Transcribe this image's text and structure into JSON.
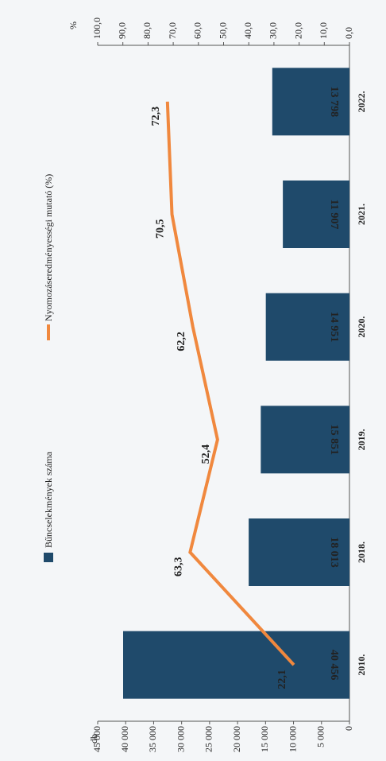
{
  "chart_data": {
    "type": "bar",
    "ylabel": "db",
    "y2label": "%",
    "categories": [
      "2010.",
      "2018.",
      "2019.",
      "2020.",
      "2021.",
      "2022."
    ],
    "series": [
      {
        "name": "Bűncselekmények száma",
        "type": "bar",
        "color": "#1f4a6b",
        "values": [
          40456,
          18013,
          15851,
          14951,
          11907,
          13798
        ],
        "value_labels": [
          "40 456",
          "18 013",
          "15 851",
          "14 951",
          "11 907",
          "13 798"
        ]
      },
      {
        "name": "Nyomozáseredményességi mutató (%)",
        "type": "line",
        "axis": "y2",
        "color": "#f0883e",
        "values": [
          22.1,
          63.3,
          52.4,
          62.2,
          70.5,
          72.3
        ],
        "value_labels": [
          "22,1",
          "63,3",
          "52,4",
          "62,2",
          "70,5",
          "72,3"
        ]
      }
    ],
    "ylim": [
      0,
      45000
    ],
    "yticks": [
      0,
      {
        "value": 5000,
        "label": "5 000"
      },
      {
        "value": 10000,
        "label": "10 000"
      },
      {
        "value": 15000,
        "label": "15 000"
      },
      {
        "value": 20000,
        "label": "20 000"
      },
      {
        "value": 25000,
        "label": "25 000"
      },
      {
        "value": 30000,
        "label": "30 000"
      },
      {
        "value": 35000,
        "label": "35 000"
      },
      {
        "value": 40000,
        "label": "40 000"
      },
      {
        "value": 45000,
        "label": "45 000"
      }
    ],
    "y2lim": [
      0,
      100
    ],
    "y2ticks": [
      {
        "value": 0,
        "label": "0,0"
      },
      {
        "value": 10,
        "label": "10,0"
      },
      {
        "value": 20,
        "label": "20,0"
      },
      {
        "value": 30,
        "label": "30,0"
      },
      {
        "value": 40,
        "label": "40,0"
      },
      {
        "value": 50,
        "label": "50,0"
      },
      {
        "value": 60,
        "label": "60,0"
      },
      {
        "value": 70,
        "label": "70,0"
      },
      {
        "value": 80,
        "label": "80,0"
      },
      {
        "value": 90,
        "label": "90,0"
      },
      {
        "value": 100,
        "label": "100,0"
      }
    ],
    "legend": "top"
  }
}
